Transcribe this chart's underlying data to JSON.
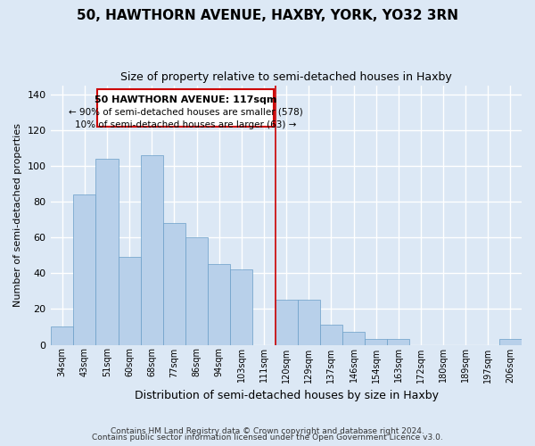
{
  "title": "50, HAWTHORN AVENUE, HAXBY, YORK, YO32 3RN",
  "subtitle": "Size of property relative to semi-detached houses in Haxby",
  "xlabel": "Distribution of semi-detached houses by size in Haxby",
  "ylabel": "Number of semi-detached properties",
  "bin_labels": [
    "34sqm",
    "43sqm",
    "51sqm",
    "60sqm",
    "68sqm",
    "77sqm",
    "86sqm",
    "94sqm",
    "103sqm",
    "111sqm",
    "120sqm",
    "129sqm",
    "137sqm",
    "146sqm",
    "154sqm",
    "163sqm",
    "172sqm",
    "180sqm",
    "189sqm",
    "197sqm",
    "206sqm"
  ],
  "values": [
    10,
    84,
    104,
    49,
    106,
    68,
    60,
    45,
    42,
    0,
    25,
    25,
    11,
    7,
    3,
    3,
    0,
    0,
    0,
    0,
    3
  ],
  "bar_color": "#b8d0ea",
  "bar_edge_color": "#6a9ec8",
  "vline_color": "#cc0000",
  "vline_x_index": 10,
  "annotation_title": "50 HAWTHORN AVENUE: 117sqm",
  "annotation_line1": "← 90% of semi-detached houses are smaller (578)",
  "annotation_line2": "10% of semi-detached houses are larger (63) →",
  "annotation_box_color": "#cc0000",
  "annotation_fill": "#ffffff",
  "ylim": [
    0,
    145
  ],
  "yticks": [
    0,
    20,
    40,
    60,
    80,
    100,
    120,
    140
  ],
  "footer1": "Contains HM Land Registry data © Crown copyright and database right 2024.",
  "footer2": "Contains public sector information licensed under the Open Government Licence v3.0.",
  "bg_color": "#dce8f5",
  "grid_color": "#c5d8ee",
  "plot_bg": "#dce8f5"
}
